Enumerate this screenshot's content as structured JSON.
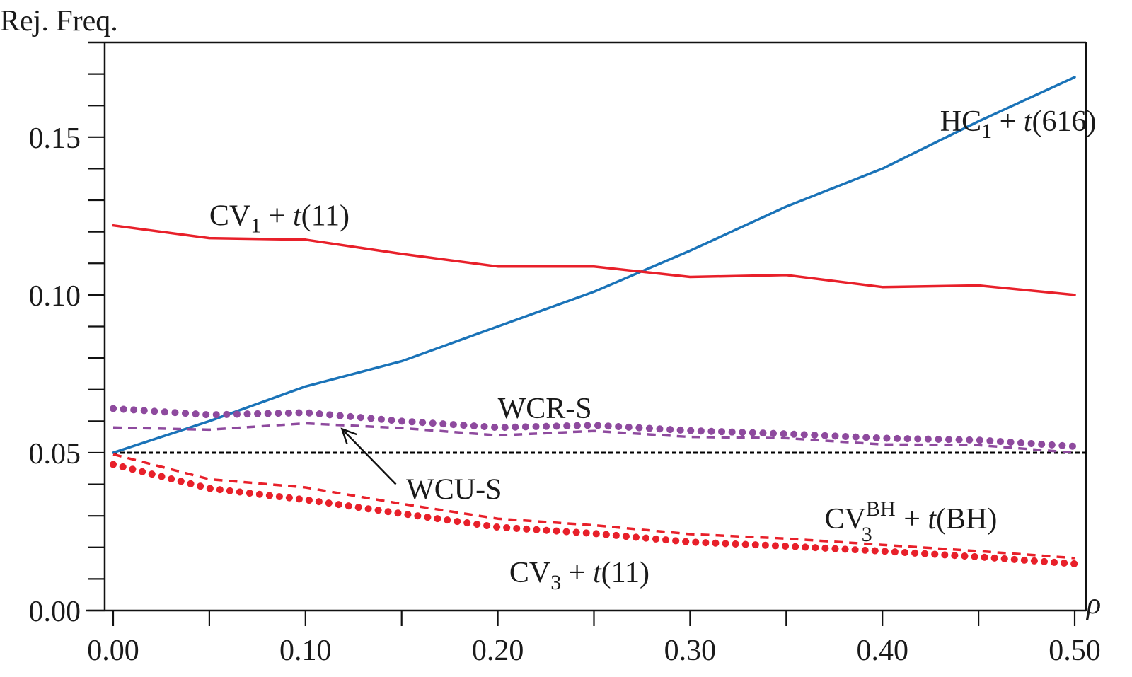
{
  "chart_data": {
    "type": "line",
    "title": "",
    "xlabel": "ρ",
    "ylabel": "Rej. Freq.",
    "xlim": [
      0.0,
      0.5
    ],
    "ylim": [
      0.0,
      0.18
    ],
    "grid": false,
    "legend": "none (inline labels)",
    "x_ticks": [
      0.0,
      0.05,
      0.1,
      0.15,
      0.2,
      0.25,
      0.3,
      0.35,
      0.4,
      0.45,
      0.5
    ],
    "x_tick_labels": [
      {
        "value": 0.0,
        "text": "0.00"
      },
      {
        "value": 0.1,
        "text": "0.10"
      },
      {
        "value": 0.2,
        "text": "0.20"
      },
      {
        "value": 0.3,
        "text": "0.30"
      },
      {
        "value": 0.4,
        "text": "0.40"
      },
      {
        "value": 0.5,
        "text": "0.50"
      }
    ],
    "y_ticks": [
      0.0,
      0.01,
      0.02,
      0.03,
      0.04,
      0.05,
      0.06,
      0.07,
      0.08,
      0.09,
      0.1,
      0.11,
      0.12,
      0.13,
      0.14,
      0.15,
      0.16,
      0.17
    ],
    "y_tick_labels": [
      {
        "value": 0.0,
        "text": "0.00"
      },
      {
        "value": 0.05,
        "text": "0.05"
      },
      {
        "value": 0.1,
        "text": "0.10"
      },
      {
        "value": 0.15,
        "text": "0.15"
      }
    ],
    "reference_line": {
      "y": 0.05,
      "style": "dotted",
      "color": "#000000"
    },
    "x": [
      0.0,
      0.05,
      0.1,
      0.15,
      0.2,
      0.25,
      0.3,
      0.35,
      0.4,
      0.45,
      0.5
    ],
    "series": [
      {
        "name": "HC1 + t(616)",
        "label_main": "HC",
        "label_sub": "1",
        "label_sup": "",
        "label_rest": " + t(616)",
        "label_at": [
          0.43,
          0.152
        ],
        "color": "#1a73b8",
        "style": "solid",
        "values": [
          0.05,
          0.06,
          0.071,
          0.079,
          0.09,
          0.101,
          0.114,
          0.128,
          0.14,
          0.155,
          0.169
        ]
      },
      {
        "name": "CV1 + t(11)",
        "label_main": "CV",
        "label_sub": "1",
        "label_sup": "",
        "label_rest": " + t(11)",
        "label_at": [
          0.05,
          0.122
        ],
        "color": "#e8202a",
        "style": "solid",
        "values": [
          0.122,
          0.118,
          0.1175,
          0.113,
          0.109,
          0.109,
          0.1057,
          0.1063,
          0.1025,
          0.103,
          0.1
        ]
      },
      {
        "name": "WCR-S",
        "label_main": "WCR-S",
        "label_sub": "",
        "label_sup": "",
        "label_rest": "",
        "label_at": [
          0.2,
          0.061
        ],
        "color": "#8e4a9e",
        "style": "dotted",
        "values": [
          0.064,
          0.062,
          0.0627,
          0.06,
          0.058,
          0.0587,
          0.057,
          0.056,
          0.0546,
          0.054,
          0.052
        ]
      },
      {
        "name": "WCU-S",
        "label_main": "WCU-S",
        "label_sub": "",
        "label_sup": "",
        "label_rest": "",
        "label_at": [
          0.152,
          0.038
        ],
        "color": "#8e4a9e",
        "style": "dashed",
        "values": [
          0.058,
          0.0573,
          0.0593,
          0.0578,
          0.0555,
          0.0569,
          0.055,
          0.0546,
          0.0526,
          0.0524,
          0.05
        ]
      },
      {
        "name": "CV3^BH + t(BH)",
        "label_main": "CV",
        "label_sub": "3",
        "label_sup": "BH",
        "label_rest": " + t(BH)",
        "label_at": [
          0.37,
          0.026
        ],
        "color": "#e8202a",
        "style": "dashed",
        "values": [
          0.0495,
          0.0416,
          0.039,
          0.0338,
          0.0291,
          0.027,
          0.0242,
          0.0228,
          0.0208,
          0.0188,
          0.0166
        ]
      },
      {
        "name": "CV3 + t(11)",
        "label_main": "CV",
        "label_sub": "3",
        "label_sup": "",
        "label_rest": " + t(11)",
        "label_at": [
          0.206,
          0.009
        ],
        "color": "#e8202a",
        "style": "dotted-heavy",
        "values": [
          0.0463,
          0.0387,
          0.0351,
          0.0307,
          0.0264,
          0.0244,
          0.0217,
          0.0204,
          0.0188,
          0.017,
          0.0148
        ]
      }
    ],
    "annotations": [
      {
        "text": "WCU-S",
        "arrow_from": [
          0.147,
          0.04
        ],
        "arrow_to": [
          0.119,
          0.0575
        ]
      }
    ]
  }
}
